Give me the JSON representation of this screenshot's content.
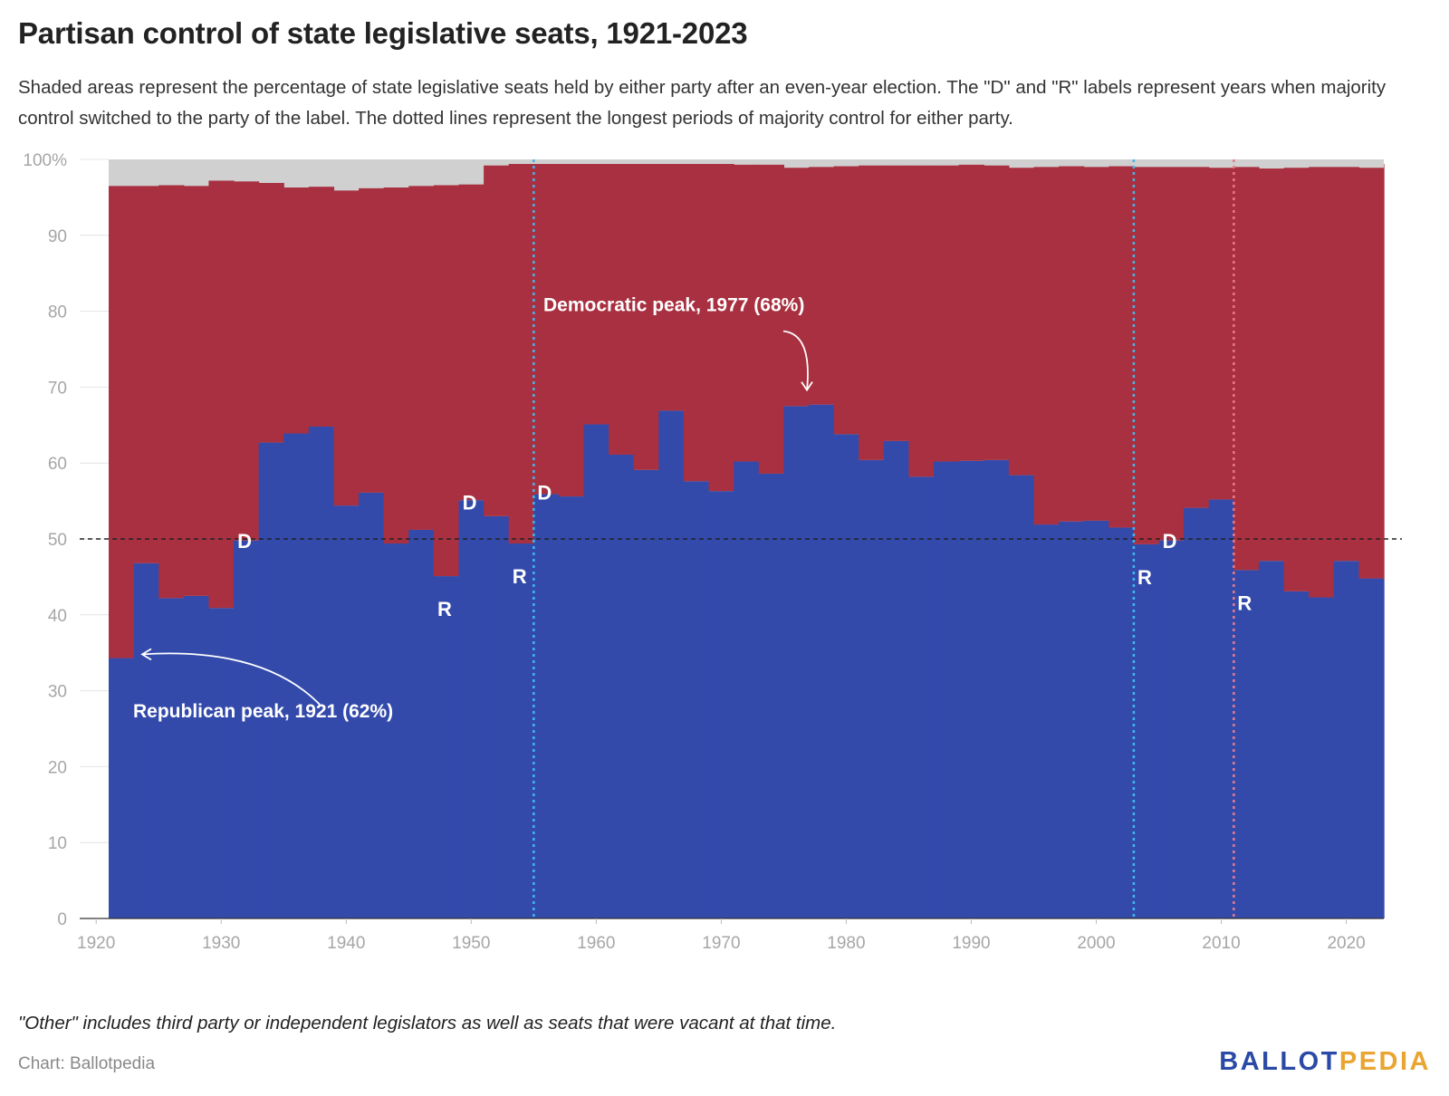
{
  "header": {
    "title": "Partisan control of state legislative seats, 1921-2023",
    "subtitle": "Shaded areas represent the percentage of state legislative seats held by either party after an even-year election. The \"D\" and \"R\" labels represent years when majority control switched to the party of the label. The dotted lines represent the longest periods of majority control for either party."
  },
  "footer": {
    "note": "\"Other\" includes third party or independent legislators as well as seats that were vacant at that time.",
    "source": "Chart: Ballotpedia",
    "logo_part1": "BALLOT",
    "logo_part2": "PEDIA"
  },
  "chart_data": {
    "type": "area",
    "stacked": true,
    "step": true,
    "x_label": "",
    "y_label": "",
    "ylim": [
      0,
      100
    ],
    "xlim": [
      1921,
      2023
    ],
    "y_ticks": [
      "0",
      "10",
      "20",
      "30",
      "40",
      "50",
      "60",
      "70",
      "80",
      "90",
      "100%"
    ],
    "x_ticks": [
      "1920",
      "1930",
      "1940",
      "1950",
      "1960",
      "1970",
      "1980",
      "1990",
      "2000",
      "2010",
      "2020"
    ],
    "colors": {
      "democratic": "#334aab",
      "republican": "#a83040",
      "other": "#d0d0d0",
      "dem_longest_line": "#3db8e8",
      "rep_longest_line": "#e87888",
      "majority_line": "#222222"
    },
    "x": [
      1921,
      1923,
      1925,
      1927,
      1929,
      1931,
      1933,
      1935,
      1937,
      1939,
      1941,
      1943,
      1945,
      1947,
      1949,
      1951,
      1953,
      1955,
      1957,
      1959,
      1961,
      1963,
      1965,
      1967,
      1969,
      1971,
      1973,
      1975,
      1977,
      1979,
      1981,
      1983,
      1985,
      1987,
      1989,
      1991,
      1993,
      1995,
      1997,
      1999,
      2001,
      2003,
      2005,
      2007,
      2009,
      2011,
      2013,
      2015,
      2017,
      2019,
      2021,
      2023
    ],
    "series": [
      {
        "name": "",
        "values": [
          34.3,
          46.8,
          42.2,
          42.5,
          40.9,
          49.8,
          62.7,
          63.9,
          64.8,
          54.4,
          56.1,
          49.4,
          51.2,
          45.1,
          55.1,
          53.0,
          49.4,
          55.9,
          55.6,
          65.1,
          61.1,
          59.1,
          66.9,
          57.6,
          56.3,
          60.2,
          58.6,
          67.5,
          67.7,
          63.8,
          60.4,
          62.9,
          58.2,
          60.2,
          60.3,
          60.4,
          58.4,
          51.9,
          52.3,
          52.4,
          51.5,
          49.3,
          49.8,
          54.1,
          55.2,
          45.9,
          47.1,
          43.1,
          42.3,
          47.1,
          44.8,
          44.5
        ]
      },
      {
        "name": "",
        "values": [
          62.2,
          49.7,
          54.4,
          54.0,
          56.3,
          47.3,
          34.2,
          32.4,
          31.6,
          41.5,
          40.1,
          46.9,
          45.3,
          51.5,
          41.6,
          46.2,
          50.0,
          43.5,
          43.8,
          34.3,
          38.3,
          40.3,
          32.5,
          41.8,
          43.1,
          39.1,
          40.7,
          31.4,
          31.3,
          35.3,
          38.8,
          36.3,
          41.0,
          39.0,
          39.0,
          38.8,
          40.5,
          47.1,
          46.8,
          46.6,
          47.6,
          49.7,
          49.2,
          44.9,
          43.7,
          53.1,
          51.7,
          55.8,
          56.7,
          51.9,
          54.1,
          54.9
        ]
      }
    ],
    "majority_line": 50,
    "longest_periods": [
      {
        "start": 1955,
        "end": 2003
      },
      {
        "start": 2011
      }
    ],
    "switch_labels": [
      {
        "label": "D",
        "year": 1931
      },
      {
        "label": "R",
        "year": 1947
      },
      {
        "label": "D",
        "year": 1949
      },
      {
        "label": "R",
        "year": 1953
      },
      {
        "label": "D",
        "year": 1955
      },
      {
        "label": "R",
        "year": 2003
      },
      {
        "label": "D",
        "year": 2005
      },
      {
        "label": "R",
        "year": 2011
      }
    ],
    "annotations": [
      {
        "text": "Democratic peak, 1977 (68%)",
        "year": 1977,
        "value": 67.7
      },
      {
        "text": "Republican peak, 1921 (62%)",
        "year": 1921,
        "value": 62.2
      }
    ]
  }
}
